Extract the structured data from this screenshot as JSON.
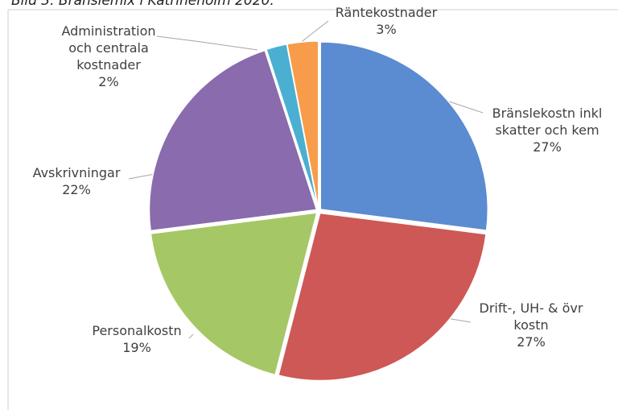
{
  "chart_data": {
    "type": "pie",
    "title": "Bild 3. Bränslemix i Katrineholm 2020.",
    "categories": [
      "Bränslekostn inkl skatter och kem",
      "Drift-, UH- & övr kostn",
      "Personalkostn",
      "Avskrivningar",
      "Administration och centrala kostnader",
      "Räntekostnader"
    ],
    "values": [
      27,
      27,
      19,
      22,
      2,
      3
    ],
    "value_labels": [
      "27%",
      "27%",
      "19%",
      "22%",
      "2%",
      "3%"
    ],
    "colors": [
      "#5b8bd0",
      "#cd5856",
      "#a5c765",
      "#8a6bad",
      "#4bafd1",
      "#f79c4a"
    ]
  }
}
